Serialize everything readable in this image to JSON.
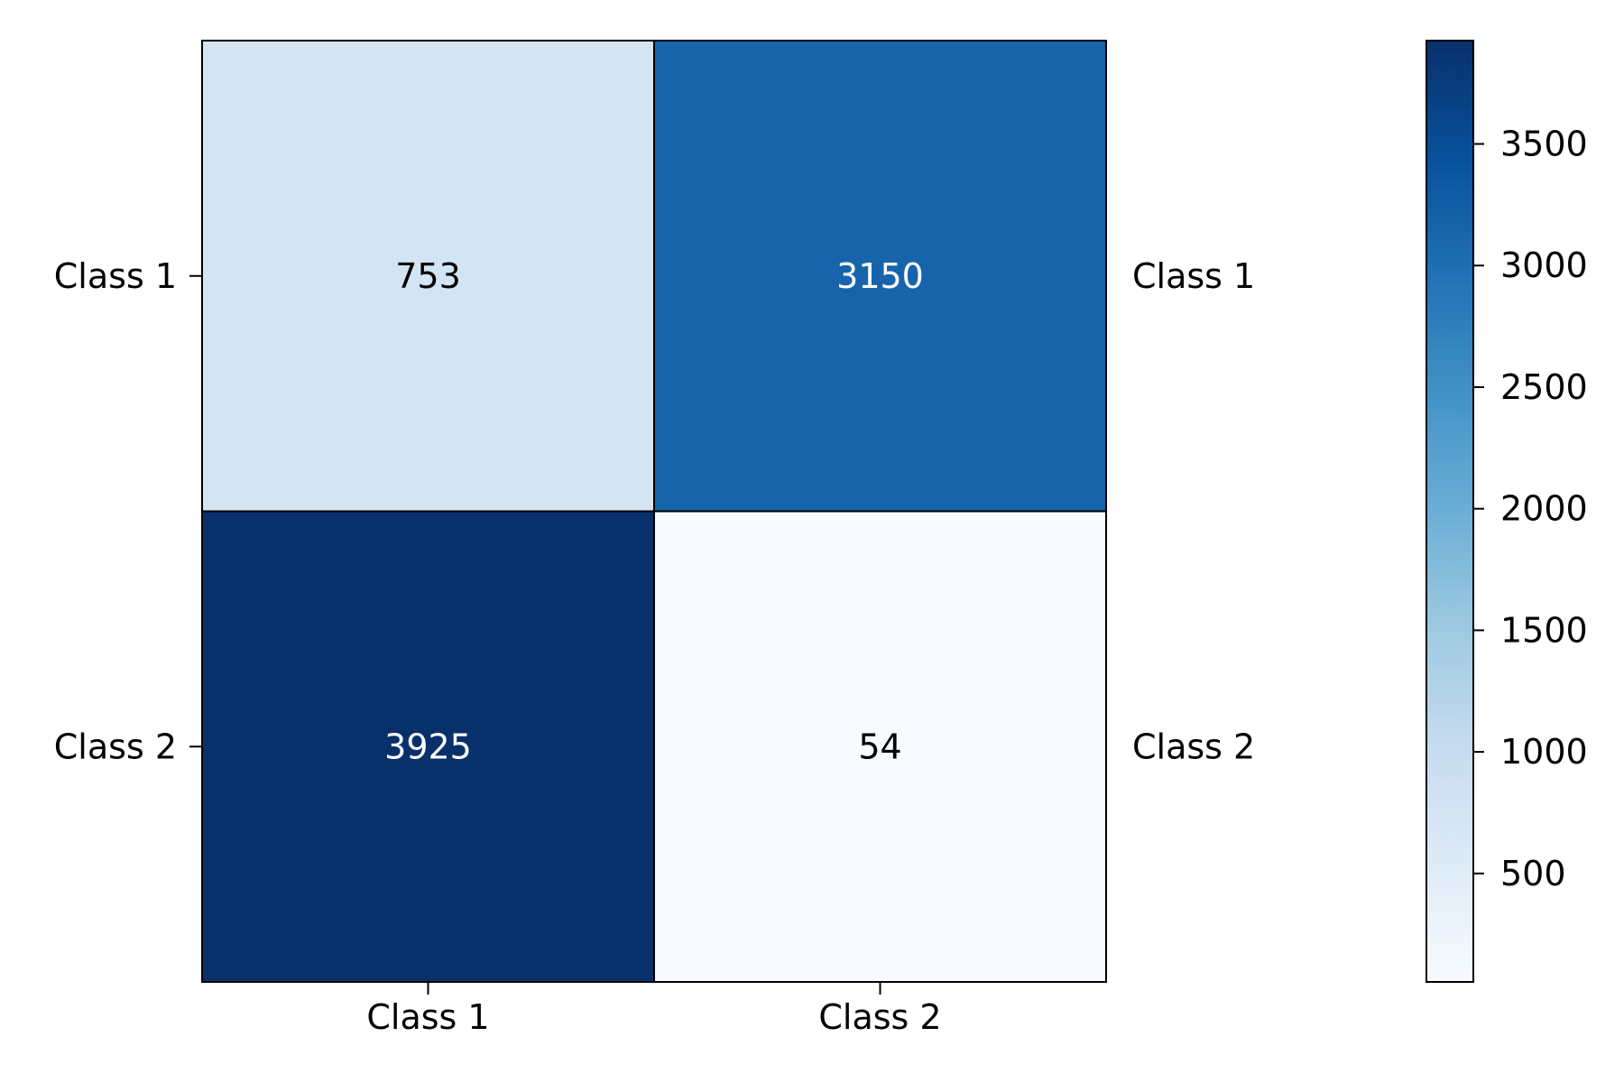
{
  "chart_data": {
    "type": "heatmap",
    "title": "",
    "xlabel": "",
    "ylabel": "",
    "x_categories": [
      "Class 1",
      "Class 2"
    ],
    "y_categories_left": [
      "Class 1",
      "Class 2"
    ],
    "y_categories_right": [
      "Class 1",
      "Class 2"
    ],
    "values": [
      [
        753,
        3150
      ],
      [
        3925,
        54
      ]
    ],
    "colormap": "Blues",
    "colorbar": {
      "range": [
        54,
        3925
      ],
      "ticks": [
        500,
        1000,
        1500,
        2000,
        2500,
        3000,
        3500
      ],
      "tick_labels": [
        "500",
        "1000",
        "1500",
        "2000",
        "2500",
        "3000",
        "3500"
      ]
    },
    "grid": false,
    "legend": "colorbar-right",
    "annotation_colors": {
      "dark_text": "#000000",
      "light_text": "#ffffff"
    }
  }
}
